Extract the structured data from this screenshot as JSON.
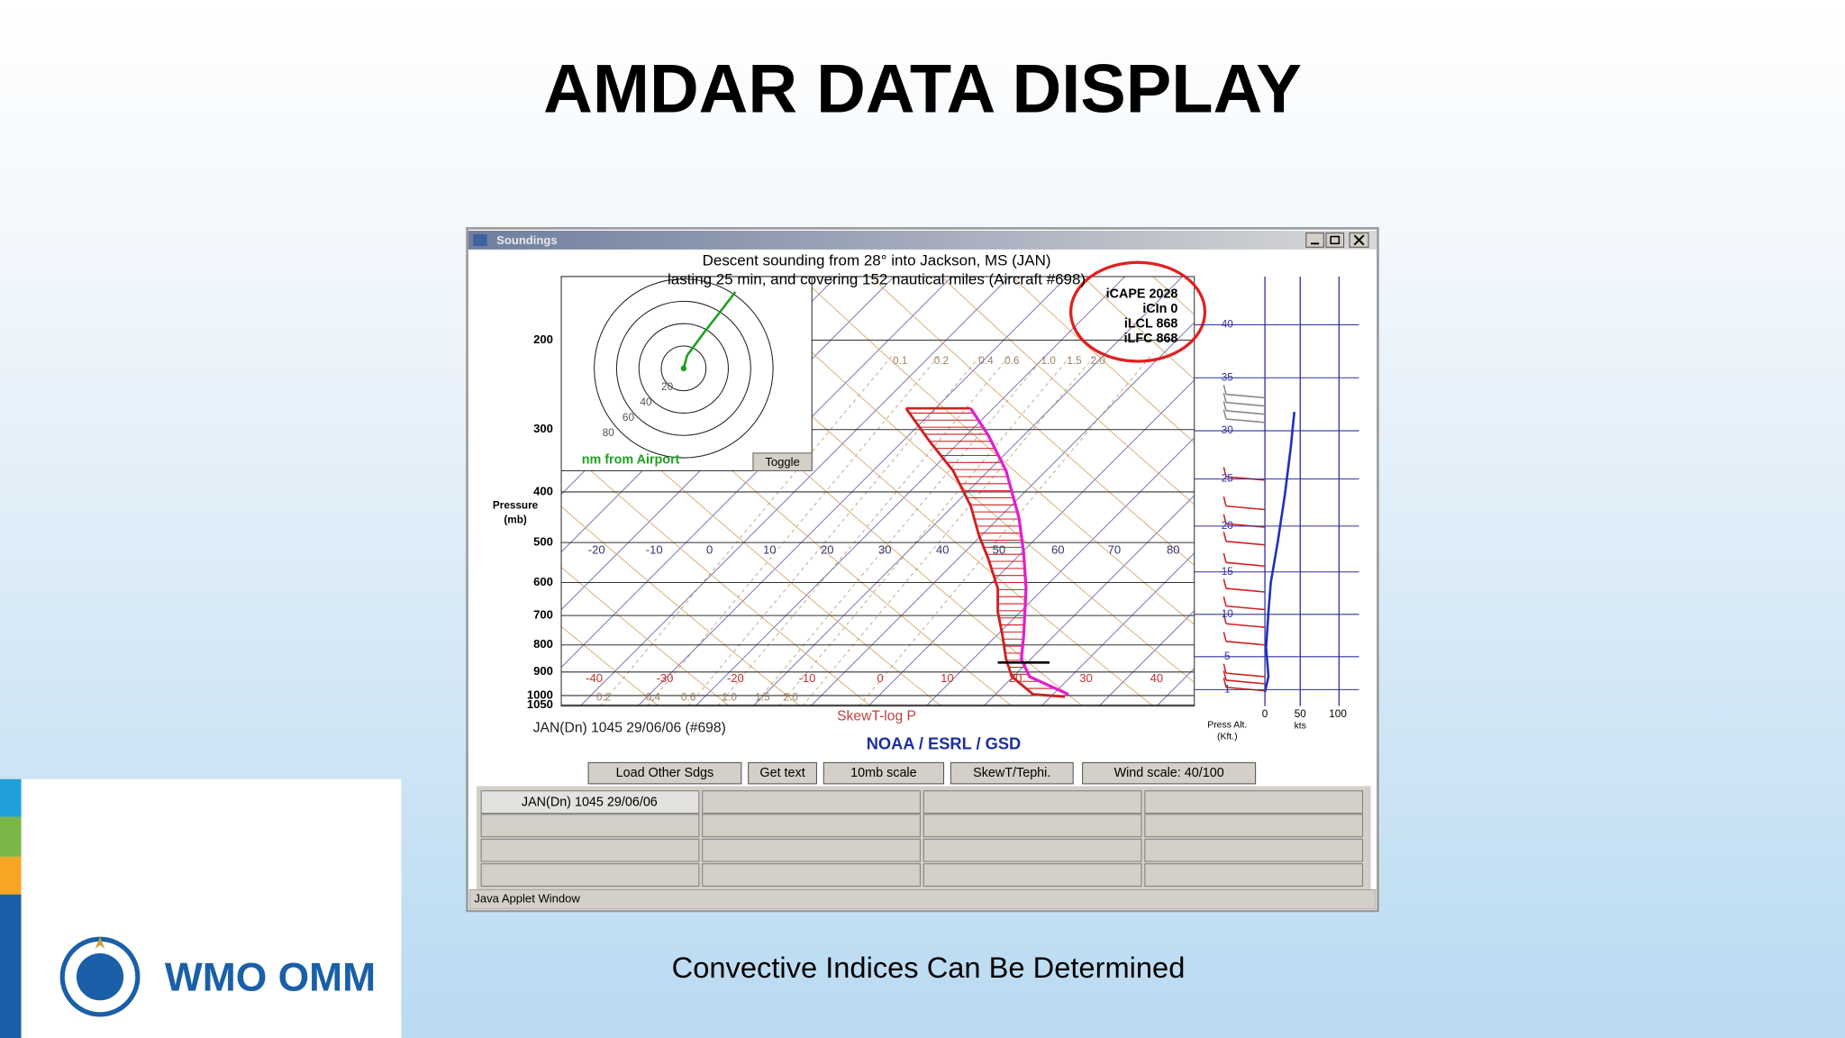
{
  "slide": {
    "title": "AMDAR DATA DISPLAY",
    "caption": "Convective Indices Can Be Determined",
    "logo_text": "WMO OMM"
  },
  "window": {
    "title": "Soundings",
    "status_bar": "Java Applet Window"
  },
  "sounding": {
    "header": [
      "Descent sounding from 28° into Jackson, MS (JAN)",
      "lasting 25 min, and covering 152 nautical miles (Aircraft #698)"
    ],
    "indices": [
      "iCAPE 2028",
      "iCIn 0",
      "iLCL 868",
      "iLFC 868"
    ],
    "pressure_axis_label": [
      "Pressure",
      "(mb)"
    ],
    "pressure_labels": [
      "200",
      "300",
      "400",
      "500",
      "600",
      "700",
      "800",
      "900",
      "1000",
      "1050"
    ],
    "temperature_labels_top": [
      "-20",
      "-10",
      "0",
      "10",
      "20",
      "30",
      "40",
      "50",
      "60",
      "70",
      "80"
    ],
    "temperature_labels_bottom": [
      "-40",
      "-30",
      "-20",
      "-10",
      "0",
      "10",
      "20",
      "30",
      "40"
    ],
    "mixing_ratio_labels_top": [
      "0.1",
      "0.2",
      "0.4",
      "0.6",
      "1.0",
      "1.5",
      "2.0"
    ],
    "mixing_ratio_labels_bottom": [
      "0.2",
      "0.4",
      "0.6",
      "1.0",
      "1.5",
      "2.0"
    ],
    "diagram_label": "SkewT-log P",
    "station_line": "JAN(Dn) 1045 29/06/06 (#698)",
    "credit": "NOAA / ESRL / GSD"
  },
  "hodograph": {
    "range_labels": [
      "20",
      "40",
      "60",
      "80"
    ],
    "caption": "nm from Airport",
    "toggle": "Toggle"
  },
  "wind_panel": {
    "altitude_labels": [
      "40",
      "35",
      "30",
      "25",
      "20",
      "15",
      "10",
      "5",
      "1"
    ],
    "axis_label": [
      "Press Alt.",
      "(Kft.)"
    ],
    "speed_labels": [
      "0",
      "50",
      "100"
    ],
    "speed_unit": "kts"
  },
  "buttons": [
    "Load Other Sdgs",
    "Get text",
    "10mb scale",
    "SkewT/Tephi.",
    "Wind scale: 40/100"
  ],
  "sounding_list": {
    "items": [
      "JAN(Dn) 1045 29/06/06"
    ]
  }
}
